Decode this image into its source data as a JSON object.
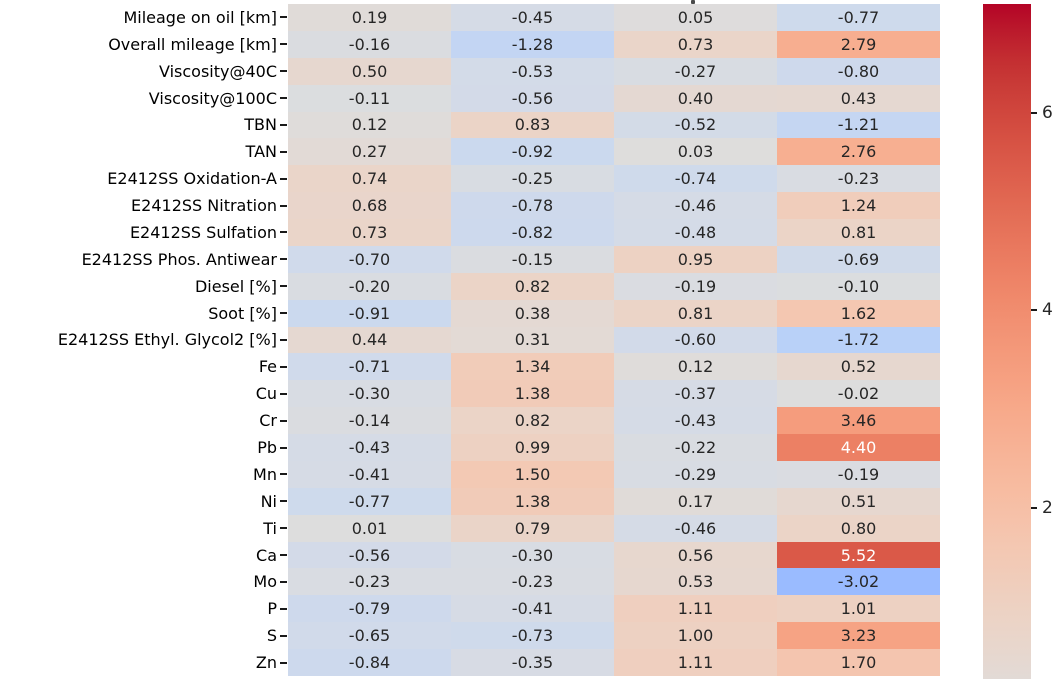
{
  "figure": {
    "background": "#ffffff",
    "annotation_text_color": "#262626",
    "annotation_text_color_on_dark": "#ffffff",
    "axis_label_color": "#000000"
  },
  "chart_data": {
    "type": "heatmap",
    "title": "",
    "xlabel": "",
    "ylabel": "",
    "column_labels_visible": false,
    "n_columns": 4,
    "rows": [
      "Mileage on oil [km]",
      "Overall mileage [km]",
      "Viscosity@40C",
      "Viscosity@100C",
      "TBN",
      "TAN",
      "E2412SS Oxidation-A",
      "E2412SS Nitration",
      "E2412SS Sulfation",
      "E2412SS Phos. Antiwear",
      "Diesel [%]",
      "Soot [%]",
      "E2412SS Ethyl. Glycol2 [%]",
      "Fe",
      "Cu",
      "Cr",
      "Pb",
      "Mn",
      "Ni",
      "Ti",
      "Ca",
      "Mo",
      "P",
      "S",
      "Zn"
    ],
    "values": [
      [
        "0.19",
        "-0.45",
        "0.05",
        "-0.77"
      ],
      [
        "-0.16",
        "-1.28",
        "0.73",
        "2.79"
      ],
      [
        "0.50",
        "-0.53",
        "-0.27",
        "-0.80"
      ],
      [
        "-0.11",
        "-0.56",
        "0.40",
        "0.43"
      ],
      [
        "0.12",
        "0.83",
        "-0.52",
        "-1.21"
      ],
      [
        "0.27",
        "-0.92",
        "0.03",
        "2.76"
      ],
      [
        "0.74",
        "-0.25",
        "-0.74",
        "-0.23"
      ],
      [
        "0.68",
        "-0.78",
        "-0.46",
        "1.24"
      ],
      [
        "0.73",
        "-0.82",
        "-0.48",
        "0.81"
      ],
      [
        "-0.70",
        "-0.15",
        "0.95",
        "-0.69"
      ],
      [
        "-0.20",
        "0.82",
        "-0.19",
        "-0.10"
      ],
      [
        "-0.91",
        "0.38",
        "0.81",
        "1.62"
      ],
      [
        "0.44",
        "0.31",
        "-0.60",
        "-1.72"
      ],
      [
        "-0.71",
        "1.34",
        "0.12",
        "0.52"
      ],
      [
        "-0.30",
        "1.38",
        "-0.37",
        "-0.02"
      ],
      [
        "-0.14",
        "0.82",
        "-0.43",
        "3.46"
      ],
      [
        "-0.43",
        "0.99",
        "-0.22",
        "4.40"
      ],
      [
        "-0.41",
        "1.50",
        "-0.29",
        "-0.19"
      ],
      [
        "-0.77",
        "1.38",
        "0.17",
        "0.51"
      ],
      [
        "0.01",
        "0.79",
        "-0.46",
        "0.80"
      ],
      [
        "-0.56",
        "-0.30",
        "0.56",
        "5.52"
      ],
      [
        "-0.23",
        "-0.23",
        "0.53",
        "-3.02"
      ],
      [
        "-0.79",
        "-0.41",
        "1.11",
        "1.01"
      ],
      [
        "-0.65",
        "-0.73",
        "1.00",
        "3.23"
      ],
      [
        "-0.84",
        "-0.35",
        "1.11",
        "1.70"
      ]
    ],
    "colormap": "coolwarm",
    "color_scale": {
      "vmin": -7.1,
      "vmax": 7.1
    },
    "colorbar": {
      "position": "right",
      "tick_labels": [
        "6",
        "4",
        "2"
      ],
      "tick_values": [
        6,
        4,
        2
      ],
      "visible_top_value": 7.1,
      "visible_bottom_value": 0.27,
      "cut_off_at_bottom": true
    }
  }
}
